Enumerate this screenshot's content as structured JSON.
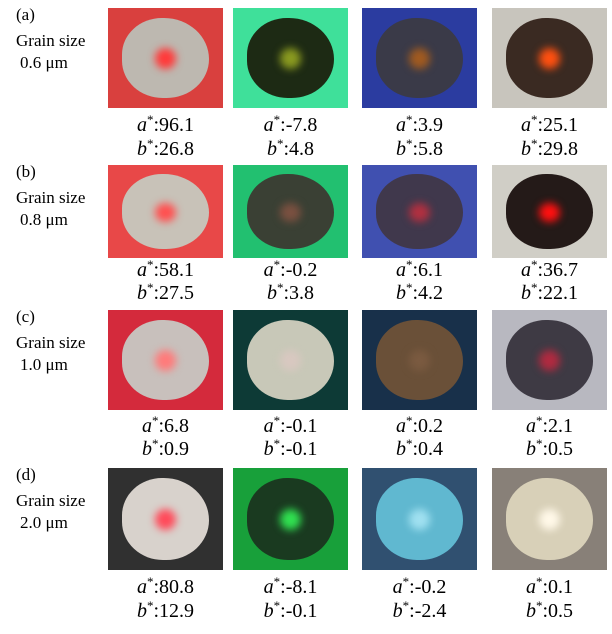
{
  "parts": {
    "a": "a",
    "b": "b",
    "star": "*",
    "colon": ":"
  },
  "rows": [
    {
      "label": "(a)",
      "caption": "Grain size",
      "size": "0.6 μm",
      "cells": [
        {
          "a": "96.1",
          "b": "26.8"
        },
        {
          "a": "-7.8",
          "b": "4.8"
        },
        {
          "a": "3.9",
          "b": "5.8"
        },
        {
          "a": "25.1",
          "b": "29.8"
        }
      ]
    },
    {
      "label": "(b)",
      "caption": "Grain size",
      "size": "0.8 μm",
      "cells": [
        {
          "a": "58.1",
          "b": "27.5"
        },
        {
          "a": "-0.2",
          "b": "3.8"
        },
        {
          "a": "6.1",
          "b": "4.2"
        },
        {
          "a": "36.7",
          "b": "22.1"
        }
      ]
    },
    {
      "label": "(c)",
      "caption": "Grain size",
      "size": "1.0 μm",
      "cells": [
        {
          "a": "6.8",
          "b": "0.9"
        },
        {
          "a": "-0.1",
          "b": "-0.1"
        },
        {
          "a": "0.2",
          "b": "0.4"
        },
        {
          "a": "2.1",
          "b": "0.5"
        }
      ]
    },
    {
      "label": "(d)",
      "caption": "Grain size",
      "size": "2.0 μm",
      "cells": [
        {
          "a": "80.8",
          "b": "12.9"
        },
        {
          "a": "-8.1",
          "b": "-0.1"
        },
        {
          "a": "-0.2",
          "b": "-2.4"
        },
        {
          "a": "0.1",
          "b": "0.5"
        }
      ]
    }
  ]
}
